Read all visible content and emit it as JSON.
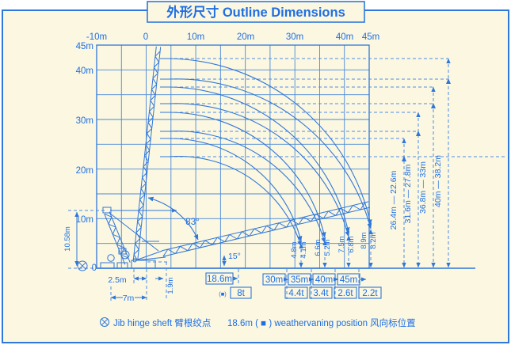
{
  "title": "外形尺寸 Outline Dimensions",
  "axis": {
    "top": [
      "-10m",
      "0",
      "10m",
      "20m",
      "30m",
      "40m",
      "45m"
    ],
    "left": [
      "45m",
      "40m",
      "30m",
      "20m",
      "10m",
      "0"
    ]
  },
  "angles": {
    "raised": "83°",
    "lowered": "15°"
  },
  "base": {
    "hinge_offset": "2.5m",
    "base_length": "7m",
    "hinge_height": "1.9m",
    "gantry_height": "10.58m"
  },
  "min_jib": {
    "length": "18.6m",
    "capacity": "8t",
    "mark": "(■)"
  },
  "jibs": [
    {
      "length": "30m",
      "capacity": "4.4t",
      "tip_max": "4.8m",
      "tip_min": "4.1m",
      "height_range": "26.4m — 22.6m"
    },
    {
      "length": "35m",
      "capacity": "3.4t",
      "tip_max": "6.6m",
      "tip_min": "5.2m",
      "height_range": "31.6m — 27.8m"
    },
    {
      "length": "40m",
      "capacity": "2.6t",
      "tip_max": "7.5m",
      "tip_min": "6.8m",
      "height_range": "36.8m — 33m"
    },
    {
      "length": "45m",
      "capacity": "2.2t",
      "tip_max": "8.9m",
      "tip_min": "8.2m",
      "height_range": "40m — 38.2m"
    }
  ],
  "footnote": {
    "part1": "Jib hinge sheft 臂根绞点",
    "part2": "18.6m ( ■ ) weathervaning position 风向标位置"
  },
  "chart_data": {
    "type": "line",
    "title": "外形尺寸 Outline Dimensions",
    "x_axis": {
      "unit": "m",
      "ticks": [
        -10,
        0,
        10,
        20,
        30,
        40,
        45
      ]
    },
    "y_axis": {
      "unit": "m",
      "ticks": [
        0,
        10,
        20,
        30,
        40,
        45
      ]
    },
    "jib_luffing_angle_range_deg": [
      15,
      83
    ],
    "hinge": {
      "height_m": 1.9,
      "offset_m": 2.5,
      "base_length_m": 7,
      "gantry_height_m": 10.58
    },
    "series": [
      {
        "name": "18.6m jib",
        "capacity_t": 8,
        "weathervaning": true
      },
      {
        "name": "30m jib",
        "capacity_t": 4.4,
        "tip_height_max_m": 26.4,
        "tip_height_min_m": 22.6,
        "lowered_tip_heights_m": [
          4.8,
          4.1
        ]
      },
      {
        "name": "35m jib",
        "capacity_t": 3.4,
        "tip_height_max_m": 31.6,
        "tip_height_min_m": 27.8,
        "lowered_tip_heights_m": [
          6.6,
          5.2
        ]
      },
      {
        "name": "40m jib",
        "capacity_t": 2.6,
        "tip_height_max_m": 36.8,
        "tip_height_min_m": 33,
        "lowered_tip_heights_m": [
          7.5,
          6.8
        ]
      },
      {
        "name": "45m jib",
        "capacity_t": 2.2,
        "tip_height_max_m": 40,
        "tip_height_min_m": 38.2,
        "lowered_tip_heights_m": [
          8.9,
          8.2
        ]
      }
    ],
    "legend_position": "none",
    "grid": true
  }
}
